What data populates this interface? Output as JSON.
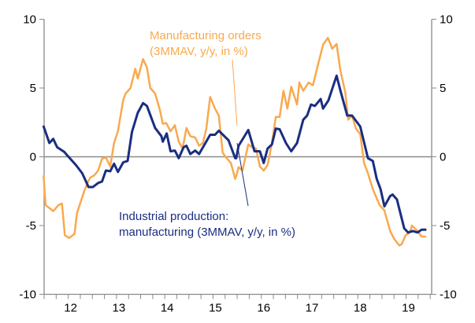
{
  "chart_data": {
    "type": "line",
    "title": "",
    "xlabel": "",
    "ylabel": "",
    "xlim": [
      2011.5,
      2019.53
    ],
    "ylim": [
      -10,
      10
    ],
    "y_ticks": [
      10,
      5,
      0,
      -5,
      -10
    ],
    "y_tick_labels": [
      "10",
      "5",
      "0",
      "-5",
      "-10"
    ],
    "y_axes": "left and right (same scale)",
    "x_ticks": [
      2012,
      2013,
      2014,
      2015,
      2016,
      2017,
      2018,
      2019
    ],
    "x_tick_labels": [
      "12",
      "13",
      "14",
      "15",
      "16",
      "17",
      "18",
      "19"
    ],
    "x_minor_ticks": "quarterly",
    "zero_line": true,
    "grid": false,
    "legend": "none (inline annotations)",
    "annotations": {
      "orders": [
        "Manufacturing orders",
        "(3MMAV, y/y, in %)"
      ],
      "production": [
        "Industrial production:",
        "manufacturing (3MMAV, y/y, in %)"
      ]
    },
    "series": [
      {
        "name": "Manufacturing orders (3MMAV, y/y, in %)",
        "color": "#f9a94e",
        "x": [
          2011.49,
          2011.53,
          2011.69,
          2011.8,
          2011.87,
          2011.93,
          2012.02,
          2012.13,
          2012.18,
          2012.33,
          2012.41,
          2012.46,
          2012.54,
          2012.62,
          2012.7,
          2012.78,
          2012.87,
          2012.95,
          2013.03,
          2013.14,
          2013.19,
          2013.29,
          2013.39,
          2013.44,
          2013.55,
          2013.63,
          2013.7,
          2013.8,
          2013.9,
          2013.96,
          2014.03,
          2014.12,
          2014.21,
          2014.29,
          2014.37,
          2014.45,
          2014.53,
          2014.63,
          2014.71,
          2014.79,
          2014.86,
          2014.94,
          2015.04,
          2015.12,
          2015.2,
          2015.27,
          2015.37,
          2015.46,
          2015.48,
          2015.53,
          2015.61,
          2015.73,
          2015.81,
          2015.89,
          2015.97,
          2016.05,
          2016.13,
          2016.22,
          2016.3,
          2016.38,
          2016.46,
          2016.54,
          2016.62,
          2016.74,
          2016.79,
          2016.87,
          2016.98,
          2017.07,
          2017.16,
          2017.28,
          2017.38,
          2017.47,
          2017.56,
          2017.64,
          2017.74,
          2017.8,
          2017.88,
          2017.96,
          2018.05,
          2018.13,
          2018.21,
          2018.31,
          2018.45,
          2018.55,
          2018.67,
          2018.75,
          2018.86,
          2018.91,
          2018.99,
          2019.08,
          2019.12,
          2019.24,
          2019.32,
          2019.4
        ],
        "values": [
          -1.4,
          -3.5,
          -3.95,
          -3.5,
          -3.4,
          -5.7,
          -5.9,
          -5.6,
          -4.1,
          -2.5,
          -1.8,
          -1.5,
          -1.35,
          -1.0,
          -0.15,
          -0.05,
          -0.7,
          1.0,
          1.85,
          4.15,
          4.6,
          5.0,
          6.4,
          5.7,
          7.1,
          6.5,
          5.0,
          4.6,
          3.4,
          2.4,
          2.45,
          1.85,
          2.3,
          1.1,
          0.6,
          2.1,
          1.5,
          1.4,
          0.8,
          1.0,
          2.05,
          4.35,
          3.5,
          3.0,
          0.3,
          -0.05,
          -0.45,
          -1.6,
          -1.4,
          -0.75,
          -1.0,
          0.9,
          0.7,
          0.6,
          -0.7,
          -1.0,
          -0.6,
          1.0,
          2.9,
          2.9,
          4.8,
          3.5,
          5.1,
          3.8,
          5.4,
          4.8,
          5.4,
          5.2,
          6.5,
          8.15,
          8.65,
          7.85,
          8.2,
          6.25,
          4.7,
          2.7,
          3.0,
          2.05,
          1.65,
          -0.45,
          -1.2,
          -2.35,
          -3.5,
          -3.9,
          -5.4,
          -5.95,
          -6.45,
          -6.35,
          -5.7,
          -5.5,
          -5.0,
          -5.4,
          -5.8,
          -5.8
        ]
      },
      {
        "name": "Industrial production: manufacturing (3MMAV, y/y, in %)",
        "color": "#1a2e80",
        "x": [
          2011.49,
          2011.61,
          2011.69,
          2011.77,
          2011.92,
          2011.98,
          2012.16,
          2012.29,
          2012.42,
          2012.51,
          2012.62,
          2012.7,
          2012.78,
          2012.87,
          2012.95,
          2013.03,
          2013.14,
          2013.23,
          2013.32,
          2013.44,
          2013.55,
          2013.63,
          2013.8,
          2013.93,
          2013.96,
          2014.04,
          2014.12,
          2014.21,
          2014.29,
          2014.39,
          2014.45,
          2014.53,
          2014.63,
          2014.71,
          2014.94,
          2015.04,
          2015.12,
          2015.32,
          2015.46,
          2015.48,
          2015.53,
          2015.73,
          2015.86,
          2015.97,
          2016.05,
          2016.13,
          2016.22,
          2016.3,
          2016.38,
          2016.51,
          2016.62,
          2016.74,
          2016.87,
          2016.95,
          2017.03,
          2017.11,
          2017.23,
          2017.28,
          2017.39,
          2017.56,
          2017.64,
          2017.78,
          2017.88,
          2018.05,
          2018.21,
          2018.31,
          2018.39,
          2018.47,
          2018.55,
          2018.67,
          2018.72,
          2018.81,
          2018.96,
          2019.04,
          2019.14,
          2019.24,
          2019.32,
          2019.4
        ],
        "values": [
          2.2,
          1.0,
          1.3,
          0.7,
          0.35,
          0.1,
          -0.6,
          -1.2,
          -2.2,
          -2.2,
          -1.9,
          -1.8,
          -1.0,
          -1.05,
          -0.5,
          -1.1,
          -0.4,
          -0.3,
          1.8,
          3.2,
          3.9,
          3.7,
          2.1,
          1.5,
          1.1,
          1.7,
          0.4,
          0.45,
          -0.1,
          0.7,
          0.8,
          0.2,
          0.45,
          0.2,
          1.6,
          1.6,
          1.9,
          1.2,
          -0.1,
          -0.1,
          0.8,
          1.95,
          0.4,
          0.4,
          -0.45,
          0.6,
          0.9,
          2.05,
          2.0,
          1.0,
          0.4,
          1.0,
          2.7,
          3.0,
          3.8,
          3.7,
          4.2,
          3.5,
          4.1,
          5.9,
          4.8,
          3.0,
          3.0,
          2.2,
          -0.1,
          -0.3,
          -1.6,
          -2.35,
          -3.6,
          -2.85,
          -2.75,
          -3.1,
          -5.2,
          -5.5,
          -5.4,
          -5.5,
          -5.3,
          -5.3
        ]
      }
    ]
  }
}
